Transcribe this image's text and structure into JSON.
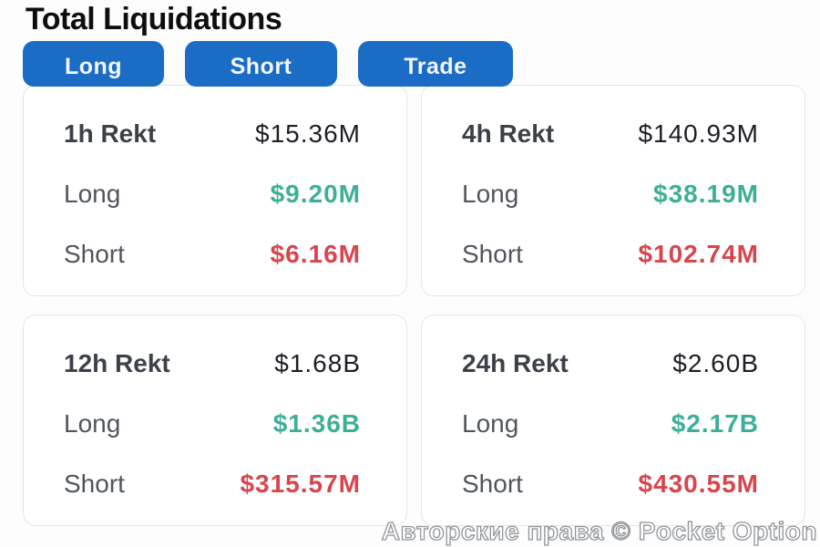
{
  "page": {
    "title": "Total Liquidations",
    "watermark": "Авторские права © Pocket Option"
  },
  "buttons": [
    {
      "label": "Long"
    },
    {
      "label": "Short"
    },
    {
      "label": "Trade"
    }
  ],
  "labels": {
    "long": "Long",
    "short": "Short"
  },
  "colors": {
    "accent_blue": "#1a6cc4",
    "long_green": "#3cb096",
    "short_red": "#d8454e"
  },
  "cards": [
    {
      "period": "1h Rekt",
      "total": "$15.36M",
      "long": "$9.20M",
      "short": "$6.16M"
    },
    {
      "period": "4h Rekt",
      "total": "$140.93M",
      "long": "$38.19M",
      "short": "$102.74M"
    },
    {
      "period": "12h Rekt",
      "total": "$1.68B",
      "long": "$1.36B",
      "short": "$315.57M"
    },
    {
      "period": "24h Rekt",
      "total": "$2.60B",
      "long": "$2.17B",
      "short": "$430.55M"
    }
  ]
}
